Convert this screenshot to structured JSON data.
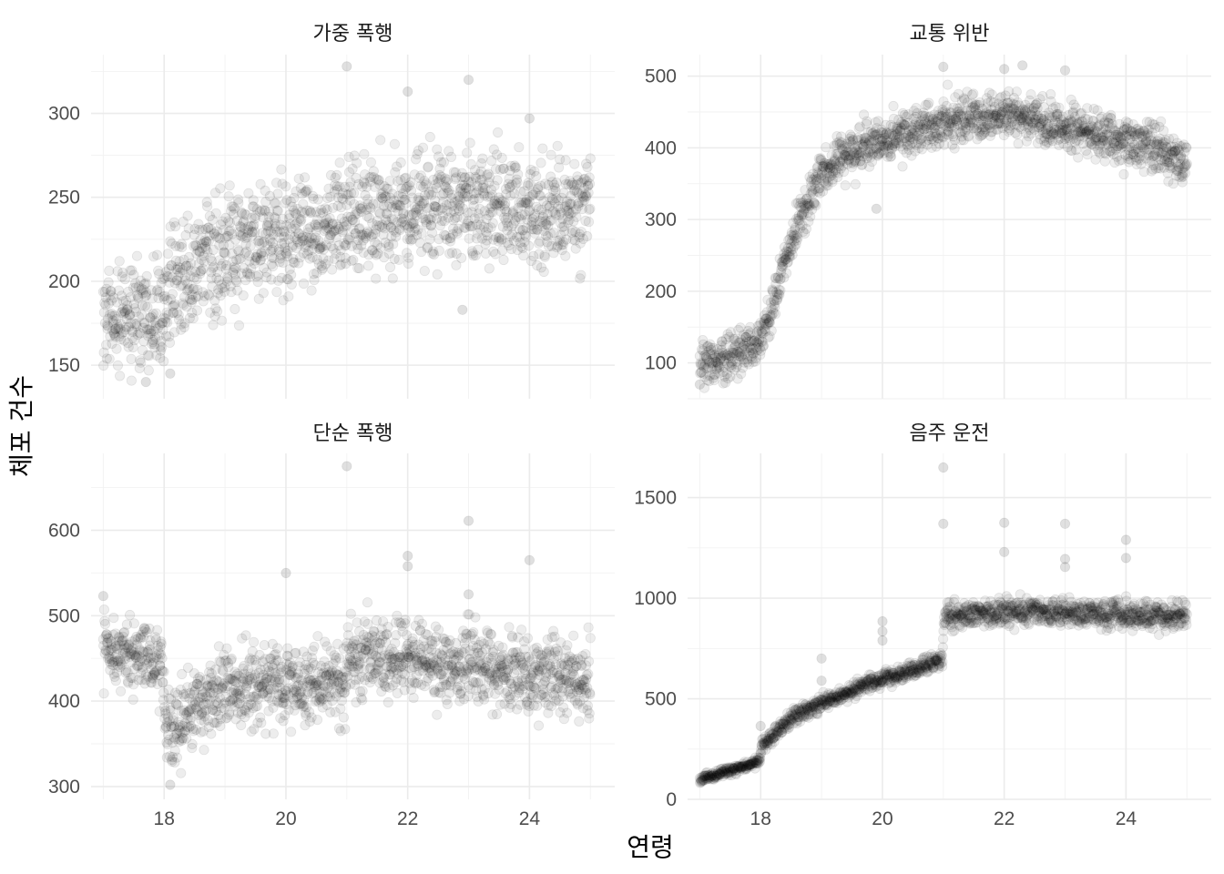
{
  "figure": {
    "xlabel": "연령",
    "ylabel": "체포 건수"
  },
  "chart_data": [
    {
      "type": "scatter",
      "title": "가중 폭행",
      "xlim": [
        16.8,
        25.4
      ],
      "ylim": [
        130,
        335
      ],
      "x_ticks": [
        18,
        20,
        22,
        24
      ],
      "y_ticks": [
        150,
        200,
        250,
        300
      ],
      "show_x_tick_labels": false,
      "grid": true,
      "color": "#000000",
      "trend": {
        "x": [
          17.0,
          17.5,
          18.0,
          18.5,
          19.0,
          19.5,
          20.0,
          20.5,
          21.0,
          21.5,
          22.0,
          22.5,
          23.0,
          23.5,
          24.0,
          24.5,
          25.0
        ],
        "y": [
          175,
          180,
          188,
          207,
          216,
          222,
          227,
          230,
          236,
          240,
          243,
          245,
          245,
          243,
          242,
          241,
          241
        ]
      },
      "spread": 18,
      "n_points": 1500,
      "outliers": [
        {
          "x": 21.0,
          "y": 328
        },
        {
          "x": 22.0,
          "y": 313
        },
        {
          "x": 23.0,
          "y": 320
        },
        {
          "x": 24.0,
          "y": 297
        },
        {
          "x": 22.9,
          "y": 183
        },
        {
          "x": 17.7,
          "y": 140
        },
        {
          "x": 18.1,
          "y": 145
        }
      ]
    },
    {
      "type": "scatter",
      "title": "교통 위반",
      "xlim": [
        16.8,
        25.4
      ],
      "ylim": [
        50,
        530
      ],
      "x_ticks": [
        18,
        20,
        22,
        24
      ],
      "y_ticks": [
        100,
        200,
        300,
        400,
        500
      ],
      "show_x_tick_labels": false,
      "grid": true,
      "color": "#000000",
      "trend": {
        "x": [
          17.0,
          17.5,
          17.9,
          18.0,
          18.2,
          18.5,
          18.8,
          19.0,
          19.5,
          20.0,
          20.5,
          21.0,
          21.5,
          22.0,
          22.5,
          23.0,
          23.5,
          24.0,
          24.5,
          25.0
        ],
        "y": [
          92,
          108,
          125,
          135,
          180,
          270,
          330,
          362,
          395,
          413,
          425,
          435,
          445,
          445,
          438,
          428,
          418,
          408,
          396,
          380
        ]
      },
      "spread": 17,
      "n_points": 1500,
      "outliers": [
        {
          "x": 21.0,
          "y": 513
        },
        {
          "x": 22.0,
          "y": 510
        },
        {
          "x": 22.3,
          "y": 515
        },
        {
          "x": 23.0,
          "y": 508
        },
        {
          "x": 19.9,
          "y": 315
        },
        {
          "x": 17.0,
          "y": 70
        }
      ]
    },
    {
      "type": "scatter",
      "title": "단순 폭행",
      "xlim": [
        16.8,
        25.4
      ],
      "ylim": [
        285,
        690
      ],
      "x_ticks": [
        18,
        20,
        22,
        24
      ],
      "y_ticks": [
        300,
        400,
        500,
        600
      ],
      "show_x_tick_labels": true,
      "grid": true,
      "color": "#000000",
      "trend": {
        "x": [
          17.0,
          17.5,
          17.95,
          18.05,
          18.5,
          19.0,
          19.5,
          20.0,
          20.5,
          20.99,
          21.01,
          21.5,
          22.0,
          22.5,
          23.0,
          23.5,
          24.0,
          24.5,
          25.0
        ],
        "y": [
          462,
          455,
          440,
          355,
          395,
          410,
          418,
          420,
          418,
          415,
          458,
          455,
          450,
          445,
          440,
          435,
          430,
          425,
          420
        ],
        "spread": [
          20,
          20,
          22,
          25,
          25,
          25,
          25,
          25,
          25,
          25,
          25,
          25,
          25,
          25,
          25,
          25,
          25,
          25,
          25
        ]
      },
      "spread": 22,
      "n_points": 1500,
      "outliers": [
        {
          "x": 21.0,
          "y": 675
        },
        {
          "x": 22.0,
          "y": 570
        },
        {
          "x": 22.0,
          "y": 558
        },
        {
          "x": 23.0,
          "y": 611
        },
        {
          "x": 23.0,
          "y": 525
        },
        {
          "x": 24.0,
          "y": 565
        },
        {
          "x": 20.0,
          "y": 550
        },
        {
          "x": 17.0,
          "y": 523
        },
        {
          "x": 18.1,
          "y": 302
        }
      ]
    },
    {
      "type": "scatter",
      "title": "음주 운전",
      "xlim": [
        16.8,
        25.4
      ],
      "ylim": [
        0,
        1720
      ],
      "x_ticks": [
        18,
        20,
        22,
        24
      ],
      "y_ticks": [
        0,
        500,
        1000,
        1500
      ],
      "show_x_tick_labels": true,
      "grid": true,
      "color": "#000000",
      "trend": {
        "x": [
          17.0,
          17.5,
          17.99,
          18.01,
          18.5,
          19.0,
          19.5,
          20.0,
          20.5,
          20.99,
          21.01,
          21.5,
          22.0,
          22.5,
          23.0,
          23.5,
          24.0,
          24.5,
          25.0
        ],
        "y": [
          100,
          140,
          190,
          270,
          400,
          480,
          540,
          595,
          645,
          700,
          910,
          920,
          930,
          935,
          930,
          925,
          918,
          910,
          905
        ],
        "spread": [
          12,
          12,
          12,
          18,
          22,
          22,
          22,
          22,
          22,
          22,
          35,
          35,
          35,
          35,
          35,
          35,
          35,
          35,
          35
        ]
      },
      "spread": 22,
      "n_points": 1500,
      "outliers": [
        {
          "x": 21.0,
          "y": 1650
        },
        {
          "x": 21.0,
          "y": 1370
        },
        {
          "x": 22.0,
          "y": 1375
        },
        {
          "x": 22.0,
          "y": 1230
        },
        {
          "x": 23.0,
          "y": 1370
        },
        {
          "x": 23.0,
          "y": 1195
        },
        {
          "x": 23.0,
          "y": 1155
        },
        {
          "x": 24.0,
          "y": 1290
        },
        {
          "x": 24.0,
          "y": 1200
        },
        {
          "x": 20.0,
          "y": 885
        },
        {
          "x": 20.0,
          "y": 835
        },
        {
          "x": 20.0,
          "y": 790
        },
        {
          "x": 19.0,
          "y": 700
        },
        {
          "x": 19.0,
          "y": 590
        },
        {
          "x": 18.0,
          "y": 365
        }
      ]
    }
  ]
}
